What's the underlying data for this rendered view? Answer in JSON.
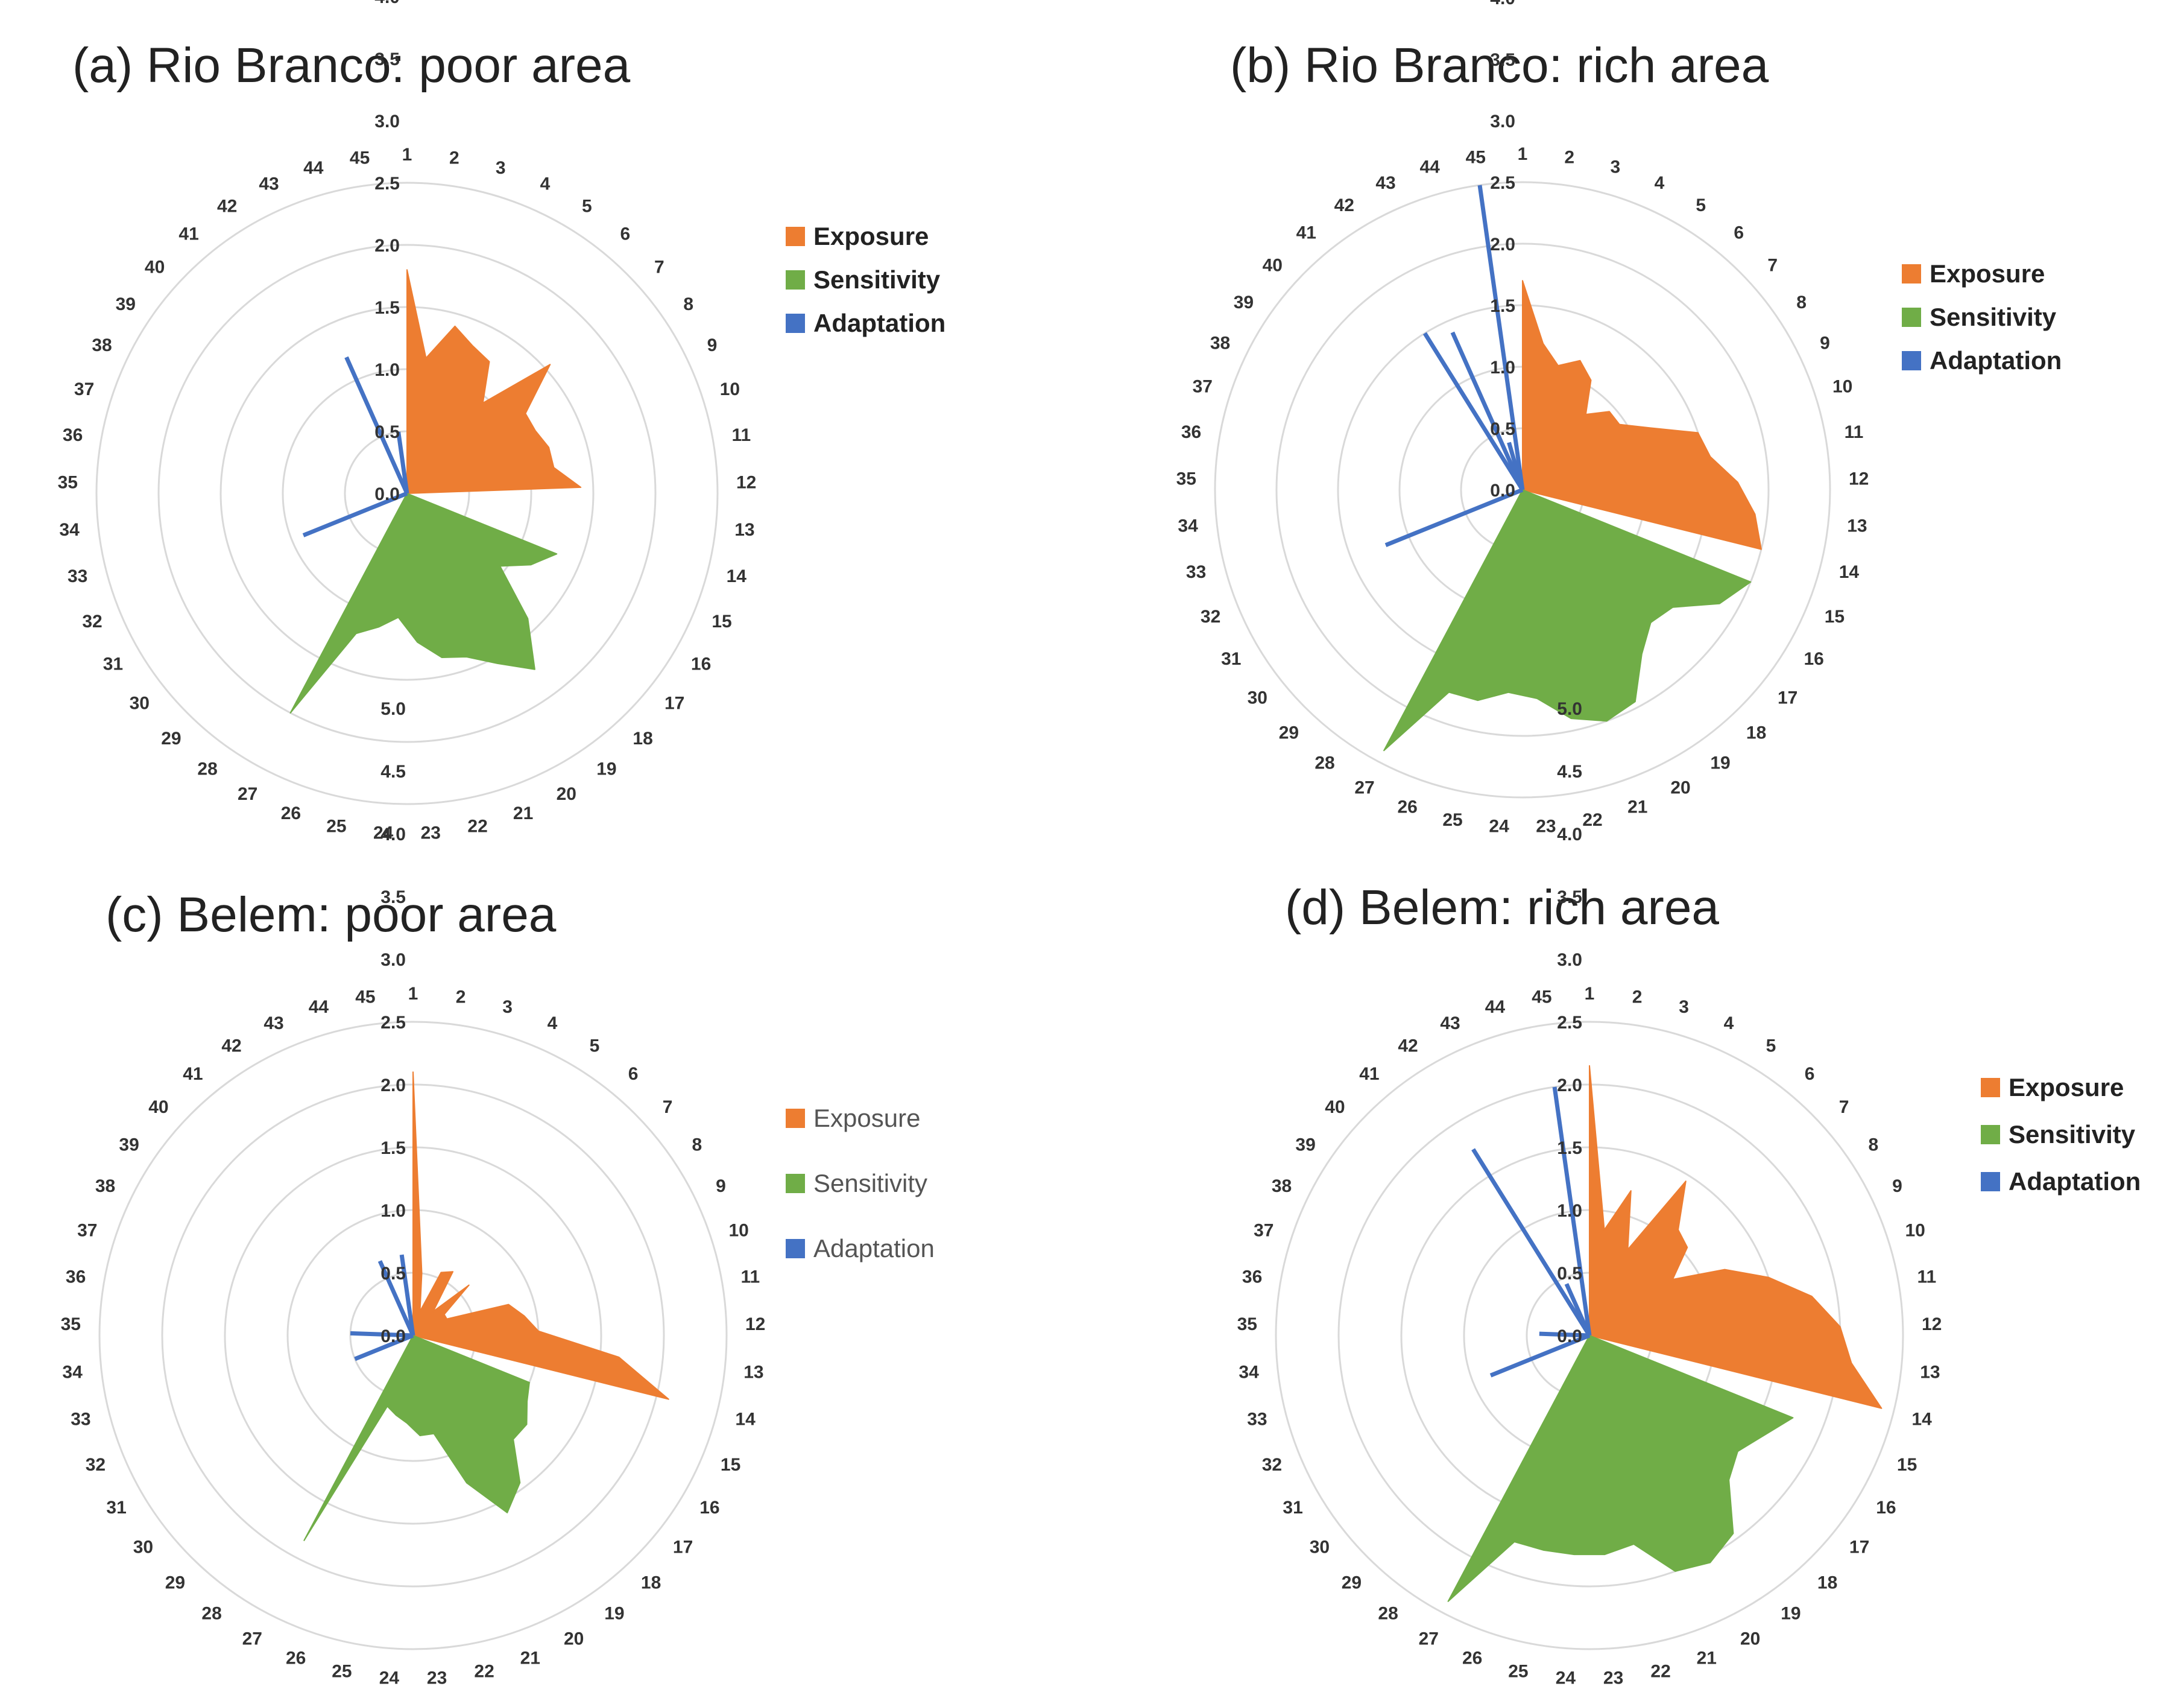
{
  "colors": {
    "exposure": "#ED7D31",
    "sensitivity": "#70AD47",
    "adaptation": "#4472C4",
    "grid": "#D9D9D9"
  },
  "chart_data": [
    {
      "type": "radar",
      "title": "(a) Rio Branco: poor area",
      "categories": [
        "1",
        "2",
        "3",
        "4",
        "5",
        "6",
        "7",
        "8",
        "9",
        "10",
        "11",
        "12",
        "13",
        "14",
        "15",
        "16",
        "17",
        "18",
        "19",
        "20",
        "21",
        "22",
        "23",
        "24",
        "25",
        "26",
        "27",
        "28",
        "29",
        "30",
        "31",
        "32",
        "33",
        "34",
        "35",
        "36",
        "37",
        "38",
        "39",
        "40",
        "41",
        "42",
        "43",
        "44",
        "45"
      ],
      "rlim": [
        0,
        5
      ],
      "ticks": [
        "0.0",
        "0.5",
        "1.0",
        "1.5",
        "2.0",
        "2.5",
        "3.0",
        "3.5",
        "4.0",
        "4.5",
        "5.0"
      ],
      "legend": "right",
      "series": [
        {
          "name": "Exposure",
          "key": "exposure",
          "values": [
            3.6,
            2.2,
            2.8,
            2.6,
            2.5,
            1.9,
            3.1,
            2.3,
            2.3,
            2.4,
            2.4,
            2.8,
            0,
            0,
            0,
            0,
            0,
            0,
            0,
            0,
            0,
            0,
            0,
            0,
            0,
            0,
            0,
            0,
            0,
            0,
            0,
            0,
            0,
            0,
            0,
            0,
            0,
            0,
            0,
            0,
            0,
            0,
            0,
            0,
            0
          ]
        },
        {
          "name": "Sensitivity",
          "key": "sensitivity",
          "values": [
            0,
            0,
            0,
            0,
            0,
            0,
            0,
            0,
            0,
            0,
            0,
            0,
            0,
            0,
            2.6,
            2.3,
            1.9,
            2.8,
            3.5,
            3.1,
            2.8,
            2.7,
            2.4,
            2.0,
            2.2,
            2.4,
            4.0,
            0,
            0,
            0,
            0,
            0,
            0,
            0,
            0,
            0,
            0,
            0,
            0,
            0,
            0,
            0,
            0,
            0,
            0
          ]
        },
        {
          "name": "Adaptation",
          "key": "adaptation",
          "values": [
            0,
            0,
            0,
            0,
            0,
            0,
            0,
            0,
            0,
            0,
            0,
            0,
            0,
            0,
            0,
            0,
            0,
            0,
            0,
            0,
            0,
            0,
            0,
            0,
            0,
            0,
            0,
            0,
            0,
            0,
            0,
            1.8,
            0,
            0,
            0,
            0,
            0,
            0,
            0,
            0,
            0,
            0,
            2.4,
            0,
            1.0
          ]
        }
      ]
    },
    {
      "type": "radar",
      "title": "(b) Rio Branco: rich area",
      "categories": [
        "1",
        "2",
        "3",
        "4",
        "5",
        "6",
        "7",
        "8",
        "9",
        "10",
        "11",
        "12",
        "13",
        "14",
        "15",
        "16",
        "17",
        "18",
        "19",
        "20",
        "21",
        "22",
        "23",
        "24",
        "25",
        "26",
        "27",
        "28",
        "29",
        "30",
        "31",
        "32",
        "33",
        "34",
        "35",
        "36",
        "37",
        "38",
        "39",
        "40",
        "41",
        "42",
        "43",
        "44",
        "45"
      ],
      "rlim": [
        0,
        5
      ],
      "ticks": [
        "0.0",
        "0.5",
        "1.0",
        "1.5",
        "2.0",
        "2.5",
        "3.0",
        "3.5",
        "4.0",
        "4.5",
        "5.0"
      ],
      "legend": "right",
      "series": [
        {
          "name": "Exposure",
          "key": "exposure",
          "values": [
            3.4,
            2.4,
            2.1,
            2.3,
            2.1,
            1.6,
            1.9,
            1.9,
            2.3,
            3.0,
            3.1,
            3.5,
            3.8,
            4.0,
            0,
            0,
            0,
            0,
            0,
            0,
            0,
            0,
            0,
            0,
            0,
            0,
            0,
            0,
            0,
            0,
            0,
            0,
            0,
            0,
            0,
            0,
            0,
            0,
            0,
            0,
            0,
            0,
            0,
            0,
            0
          ]
        },
        {
          "name": "Sensitivity",
          "key": "sensitivity",
          "values": [
            0,
            0,
            0,
            0,
            0,
            0,
            0,
            0,
            0,
            0,
            0,
            0,
            0,
            0,
            4.0,
            3.7,
            3.1,
            3.0,
            3.3,
            3.9,
            4.0,
            3.8,
            3.4,
            3.3,
            3.5,
            3.5,
            4.8,
            0,
            0,
            0,
            0,
            0,
            0,
            0,
            0,
            0,
            0,
            0,
            0,
            0,
            0,
            0,
            0,
            0,
            0
          ]
        },
        {
          "name": "Adaptation",
          "key": "adaptation",
          "values": [
            0,
            0,
            0,
            0,
            0,
            0,
            0,
            0,
            0,
            0,
            0,
            0,
            0,
            0,
            0,
            0,
            0,
            0,
            0,
            0,
            0,
            0,
            0,
            0,
            0,
            0,
            0,
            0,
            0,
            0,
            0,
            2.4,
            0,
            0,
            0,
            0,
            0,
            0,
            0,
            0,
            0,
            3.0,
            2.8,
            0.8,
            5.0
          ]
        }
      ]
    },
    {
      "type": "radar",
      "title": "(c) Belem: poor area",
      "categories": [
        "1",
        "2",
        "3",
        "4",
        "5",
        "6",
        "7",
        "8",
        "9",
        "10",
        "11",
        "12",
        "13",
        "14",
        "15",
        "16",
        "17",
        "18",
        "19",
        "20",
        "21",
        "22",
        "23",
        "24",
        "25",
        "26",
        "27",
        "28",
        "29",
        "30",
        "31",
        "32",
        "33",
        "34",
        "35",
        "36",
        "37",
        "38",
        "39",
        "40",
        "41",
        "42",
        "43",
        "44",
        "45"
      ],
      "rlim": [
        0,
        5
      ],
      "ticks": [
        "0.0",
        "0.5",
        "1.0",
        "1.5",
        "2.0",
        "2.5",
        "3.0",
        "3.5",
        "4.0",
        "4.5",
        "5.0"
      ],
      "legend": "right",
      "series": [
        {
          "name": "Exposure",
          "key": "exposure",
          "values": [
            4.2,
            1.0,
            0.4,
            1.1,
            1.2,
            0.5,
            1.2,
            0.6,
            0.6,
            1.6,
            1.8,
            2.0,
            3.3,
            4.2,
            0,
            0,
            0,
            0,
            0,
            0,
            0,
            0,
            0,
            0,
            0,
            0,
            0,
            0,
            0,
            0,
            0,
            0,
            0,
            0,
            0,
            0,
            0,
            0,
            0,
            0,
            0,
            0,
            0,
            0,
            0
          ]
        },
        {
          "name": "Sensitivity",
          "key": "sensitivity",
          "values": [
            0,
            0,
            0,
            0,
            0,
            0,
            0,
            0,
            0,
            0,
            0,
            0,
            0,
            0,
            2.0,
            2.1,
            2.3,
            2.3,
            2.9,
            3.2,
            2.5,
            1.6,
            1.6,
            1.4,
            1.3,
            1.2,
            3.7,
            0,
            0,
            0,
            0,
            0,
            0,
            0,
            0,
            0,
            0,
            0,
            0,
            0,
            0,
            0,
            0,
            0,
            0
          ]
        },
        {
          "name": "Adaptation",
          "key": "adaptation",
          "values": [
            0,
            0,
            0,
            0,
            0,
            0,
            0,
            0,
            0,
            0,
            0,
            0,
            0,
            0,
            0,
            0,
            0,
            0,
            0,
            0,
            0,
            0,
            0,
            0,
            0,
            0,
            0,
            0,
            0,
            0,
            0,
            1.0,
            0,
            0,
            1.0,
            0,
            0,
            0,
            0,
            0,
            0,
            0,
            1.3,
            0,
            1.3
          ]
        }
      ]
    },
    {
      "type": "radar",
      "title": "(d) Belem: rich area",
      "categories": [
        "1",
        "2",
        "3",
        "4",
        "5",
        "6",
        "7",
        "8",
        "9",
        "10",
        "11",
        "12",
        "13",
        "14",
        "15",
        "16",
        "17",
        "18",
        "19",
        "20",
        "21",
        "22",
        "23",
        "24",
        "25",
        "26",
        "27",
        "28",
        "29",
        "30",
        "31",
        "32",
        "33",
        "34",
        "35",
        "36",
        "37",
        "38",
        "39",
        "40",
        "41",
        "42",
        "43",
        "44",
        "45"
      ],
      "rlim": [
        0,
        5
      ],
      "ticks": [
        "0.0",
        "0.5",
        "1.0",
        "1.5",
        "2.0",
        "2.5",
        "3.0",
        "3.5",
        "4.0",
        "4.5",
        "5.0"
      ],
      "legend": "right",
      "series": [
        {
          "name": "Exposure",
          "key": "exposure",
          "values": [
            4.3,
            1.7,
            2.4,
            1.5,
            2.9,
            2.2,
            2.1,
            1.6,
            2.4,
            3.0,
            3.6,
            4.0,
            4.2,
            4.8,
            0,
            0,
            0,
            0,
            0,
            0,
            0,
            0,
            0,
            0,
            0,
            0,
            0,
            0,
            0,
            0,
            0,
            0,
            0,
            0,
            0,
            0,
            0,
            0,
            0,
            0,
            0,
            0,
            0,
            0,
            0
          ]
        },
        {
          "name": "Sensitivity",
          "key": "sensitivity",
          "values": [
            0,
            0,
            0,
            0,
            0,
            0,
            0,
            0,
            0,
            0,
            0,
            0,
            0,
            0,
            3.5,
            3.2,
            3.0,
            3.2,
            3.9,
            4.1,
            4.0,
            3.4,
            3.5,
            3.5,
            3.5,
            3.5,
            4.8,
            0,
            0,
            0,
            0,
            0,
            0,
            0,
            0,
            0,
            0,
            0,
            0,
            0,
            0,
            0,
            0,
            0,
            0
          ]
        },
        {
          "name": "Adaptation",
          "key": "adaptation",
          "values": [
            0,
            0,
            0,
            0,
            0,
            0,
            0,
            0,
            0,
            0,
            0,
            0,
            0,
            0,
            0,
            0,
            0,
            0,
            0,
            0,
            0,
            0,
            0,
            0,
            0,
            0,
            0,
            0,
            0,
            0,
            0,
            1.7,
            0,
            0,
            0.8,
            0,
            0,
            0,
            0,
            0,
            0,
            3.5,
            0.9,
            0,
            4.0
          ]
        }
      ]
    }
  ]
}
